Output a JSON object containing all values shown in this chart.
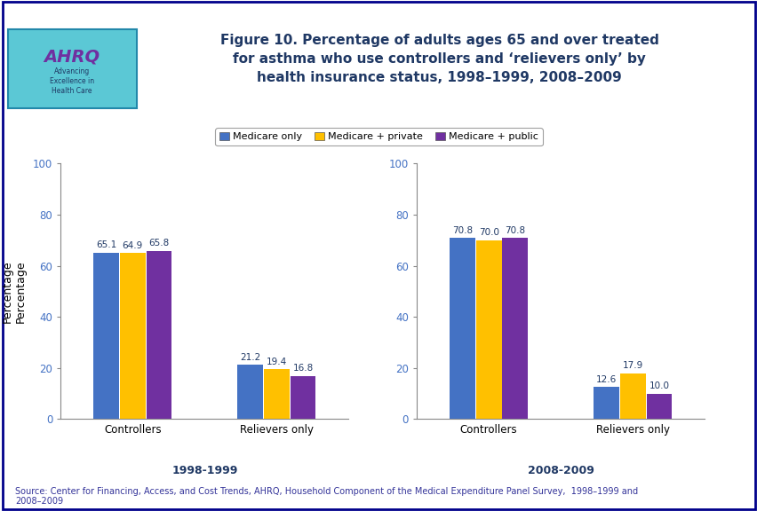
{
  "title": "Figure 10. Percentage of adults ages 65 and over treated\nfor asthma who use controllers and ‘relievers only’ by\nhealth insurance status, 1998–1999, 2008–2009",
  "ylabel": "Percentage",
  "source_text": "Source: Center for Financing, Access, and Cost Trends, AHRQ, Household Component of the Medical Expenditure Panel Survey,  1998–1999 and\n2008–2009",
  "legend_labels": [
    "Medicare only",
    "Medicare + private",
    "Medicare + public"
  ],
  "bar_colors": [
    "#4472C4",
    "#FFC000",
    "#7030A0"
  ],
  "period1_label": "1998-1999",
  "period2_label": "2008-2009",
  "categories": [
    "Controllers",
    "Relievers only"
  ],
  "period1_data": {
    "Controllers": [
      65.1,
      64.9,
      65.8
    ],
    "Relievers only": [
      21.2,
      19.4,
      16.8
    ]
  },
  "period2_data": {
    "Controllers": [
      70.8,
      70.0,
      70.8
    ],
    "Relievers only": [
      12.6,
      17.9,
      10.0
    ]
  },
  "ylim": [
    0,
    100
  ],
  "yticks": [
    0,
    20,
    40,
    60,
    80,
    100
  ],
  "title_color": "#1F3864",
  "bar_label_color": "#1F3864",
  "period_label_color": "#1F3864",
  "dark_blue": "#00008B",
  "figure_bg": "#FFFFFF",
  "border_blue": "#00008B",
  "tick_label_color": "#4472C4",
  "xticklabel_color": "#4472C4"
}
